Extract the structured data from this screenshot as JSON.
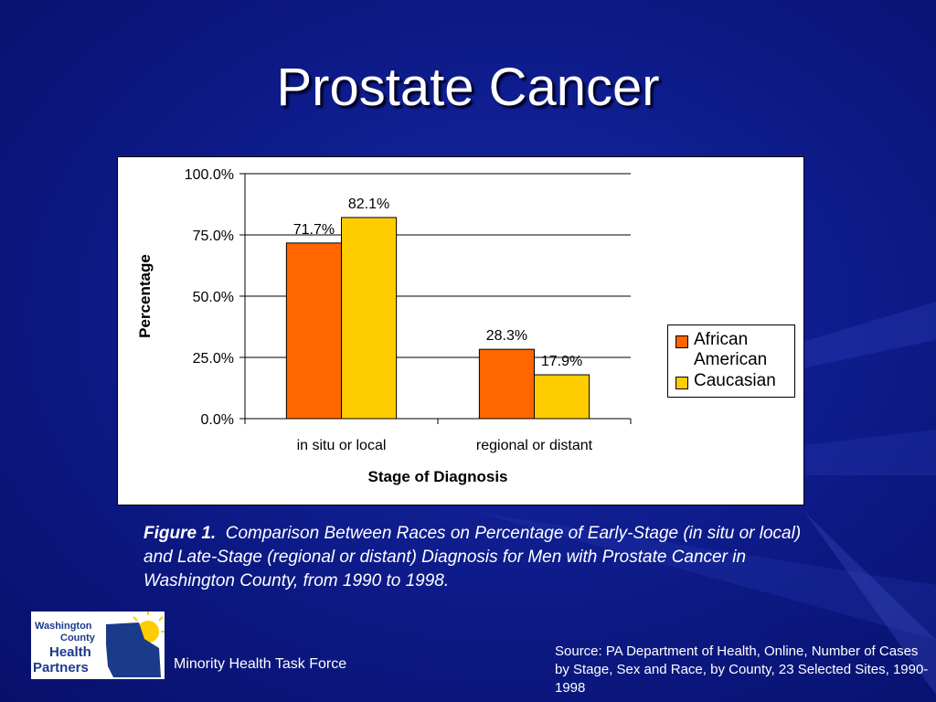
{
  "slide": {
    "title": "Prostate Cancer"
  },
  "chart_data": {
    "type": "bar",
    "categories": [
      "in situ or local",
      "regional or distant"
    ],
    "series": [
      {
        "name": "African American",
        "values": [
          71.7,
          28.3
        ],
        "labels": [
          "71.7%",
          "28.3%"
        ],
        "color": "#ff6600"
      },
      {
        "name": "Caucasian",
        "values": [
          82.1,
          17.9
        ],
        "labels": [
          "82.1%",
          "17.9%"
        ],
        "color": "#ffcc00"
      }
    ],
    "ylim": [
      0,
      100
    ],
    "yticks": [
      "0.0%",
      "25.0%",
      "50.0%",
      "75.0%",
      "100.0%"
    ],
    "ylabel": "Percentage",
    "xlabel": "Stage of Diagnosis",
    "grid": true,
    "legend": "right"
  },
  "caption": {
    "label": "Figure 1.",
    "text": "Comparison Between Races on Percentage of Early-Stage (in situ or local) and Late-Stage (regional or distant) Diagnosis for Men with Prostate Cancer in Washington County, from 1990 to 1998."
  },
  "logo": {
    "line1": "Washington",
    "line2": "County",
    "line3": "Health",
    "line4": "Partners"
  },
  "footer": {
    "org": "Minority Health Task Force",
    "source": "Source: PA Department of Health, Online, Number of Cases by Stage, Sex and Race, by County, 23 Selected Sites, 1990-1998"
  },
  "colors": {
    "background": "#0e1c8c",
    "african_american": "#ff6600",
    "caucasian": "#ffcc00"
  }
}
